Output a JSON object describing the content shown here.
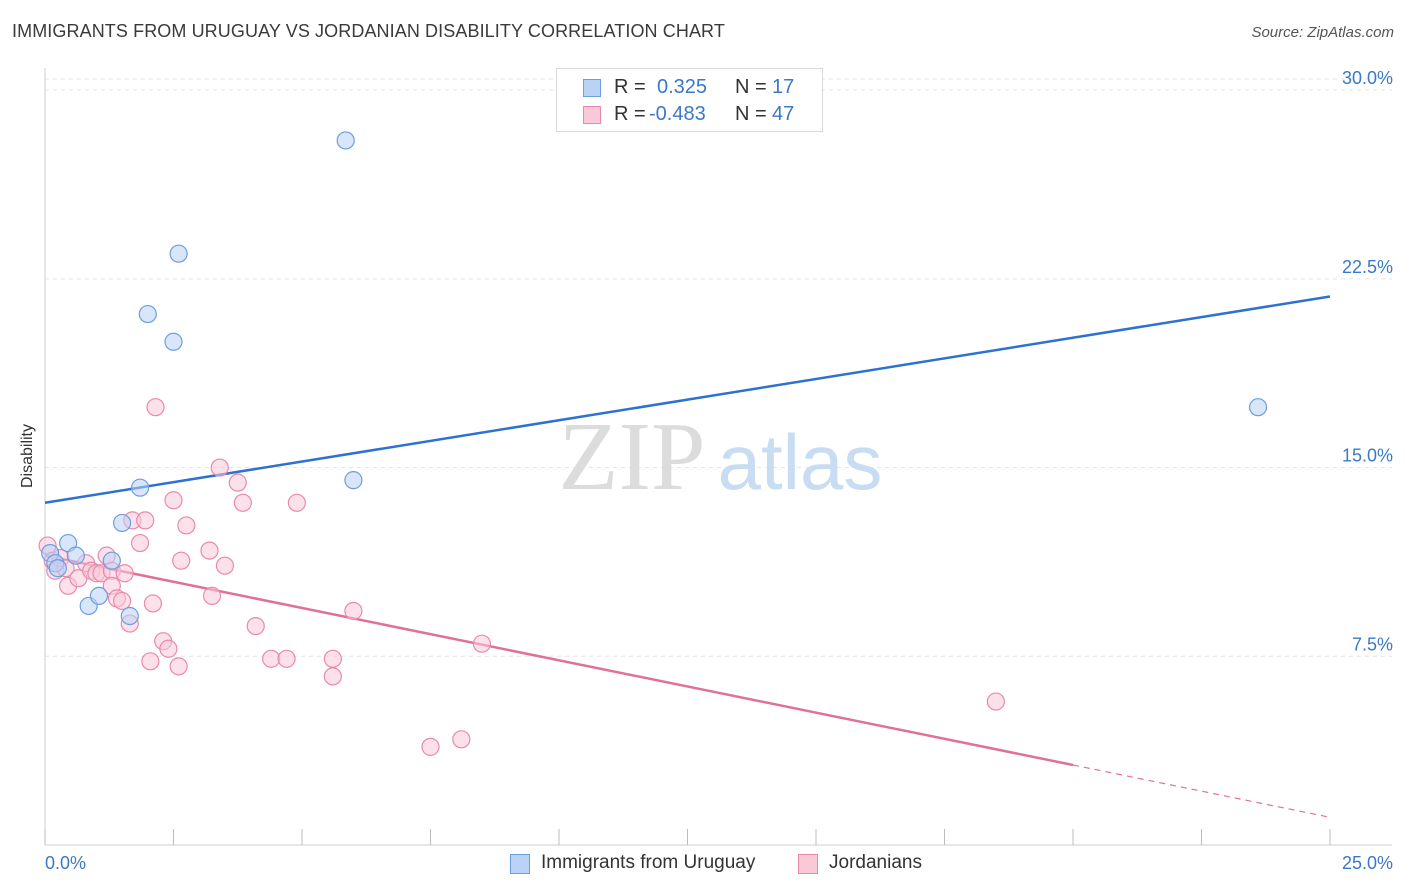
{
  "title": "IMMIGRANTS FROM URUGUAY VS JORDANIAN DISABILITY CORRELATION CHART",
  "source": "Source: ZipAtlas.com",
  "watermark": {
    "zip": "ZIP",
    "atlas": "atlas"
  },
  "stats": [
    {
      "r_label": "R =",
      "r_value": "0.325",
      "n_label": "N =",
      "n_value": "17",
      "color": "#b9d2f5",
      "border": "#6b9fe0"
    },
    {
      "r_label": "R =",
      "r_value": "-0.483",
      "n_label": "N =",
      "n_value": "47",
      "color": "#f9c9d8",
      "border": "#e98aaa"
    }
  ],
  "legend": [
    {
      "label": "Immigrants from Uruguay",
      "color": "#b9d2f5",
      "border": "#6b9fe0"
    },
    {
      "label": "Jordanians",
      "color": "#f9c9d8",
      "border": "#e98aaa"
    }
  ],
  "chart_data": {
    "type": "scatter",
    "title": "IMMIGRANTS FROM URUGUAY VS JORDANIAN DISABILITY CORRELATION CHART",
    "xlabel": "",
    "ylabel": "Disability",
    "xlim": [
      0,
      25
    ],
    "ylim": [
      0,
      30.8
    ],
    "x_tick_labels": [
      "0.0%",
      "25.0%"
    ],
    "y_ticks": [
      7.5,
      15.0,
      22.5,
      30.0
    ],
    "y_tick_labels": [
      "7.5%",
      "15.0%",
      "22.5%",
      "30.0%"
    ],
    "grid": true,
    "legend_position": "bottom",
    "series": [
      {
        "name": "Immigrants from Uruguay",
        "color": "#6b9fe0",
        "fill": "#b9d2f5",
        "line_color": "#2d72d2",
        "points": [
          [
            0.1,
            11.6
          ],
          [
            0.2,
            11.2
          ],
          [
            0.25,
            11.0
          ],
          [
            0.45,
            12.0
          ],
          [
            0.6,
            11.5
          ],
          [
            0.85,
            9.5
          ],
          [
            1.05,
            9.9
          ],
          [
            1.3,
            11.3
          ],
          [
            1.5,
            12.8
          ],
          [
            1.85,
            14.2
          ],
          [
            2.0,
            21.1
          ],
          [
            2.5,
            20.0
          ],
          [
            2.6,
            23.5
          ],
          [
            5.85,
            28.0
          ],
          [
            6.0,
            14.5
          ],
          [
            23.6,
            17.4
          ],
          [
            1.65,
            9.1
          ]
        ],
        "trend": {
          "x": [
            0,
            25
          ],
          "y": [
            13.6,
            21.8
          ],
          "dash_from": null
        }
      },
      {
        "name": "Jordanians",
        "color": "#e98aaa",
        "fill": "#f9c9d8",
        "line_color": "#e0709a",
        "points": [
          [
            0.05,
            11.9
          ],
          [
            0.15,
            11.3
          ],
          [
            0.2,
            10.9
          ],
          [
            0.3,
            11.4
          ],
          [
            0.4,
            11.0
          ],
          [
            0.45,
            10.3
          ],
          [
            0.65,
            10.6
          ],
          [
            0.8,
            11.2
          ],
          [
            0.9,
            10.9
          ],
          [
            1.0,
            10.8
          ],
          [
            1.1,
            10.8
          ],
          [
            1.2,
            11.5
          ],
          [
            1.3,
            10.9
          ],
          [
            1.3,
            10.3
          ],
          [
            1.4,
            9.8
          ],
          [
            1.5,
            9.7
          ],
          [
            1.55,
            10.8
          ],
          [
            1.65,
            8.8
          ],
          [
            1.7,
            12.9
          ],
          [
            1.85,
            12.0
          ],
          [
            1.95,
            12.9
          ],
          [
            2.05,
            7.3
          ],
          [
            2.1,
            9.6
          ],
          [
            2.15,
            17.4
          ],
          [
            2.3,
            8.1
          ],
          [
            2.4,
            7.8
          ],
          [
            2.5,
            13.7
          ],
          [
            2.6,
            7.1
          ],
          [
            2.65,
            11.3
          ],
          [
            2.75,
            12.7
          ],
          [
            3.2,
            11.7
          ],
          [
            3.25,
            9.9
          ],
          [
            3.4,
            15.0
          ],
          [
            3.5,
            11.1
          ],
          [
            3.75,
            14.4
          ],
          [
            3.85,
            13.6
          ],
          [
            4.1,
            8.7
          ],
          [
            4.4,
            7.4
          ],
          [
            4.7,
            7.4
          ],
          [
            4.9,
            13.6
          ],
          [
            5.6,
            7.4
          ],
          [
            5.6,
            6.7
          ],
          [
            6.0,
            9.3
          ],
          [
            7.5,
            3.9
          ],
          [
            8.1,
            4.2
          ],
          [
            8.5,
            8.0
          ],
          [
            18.5,
            5.7
          ]
        ],
        "trend": {
          "x": [
            0,
            25
          ],
          "y": [
            11.5,
            1.1
          ],
          "dash_from": 20
        }
      }
    ]
  }
}
